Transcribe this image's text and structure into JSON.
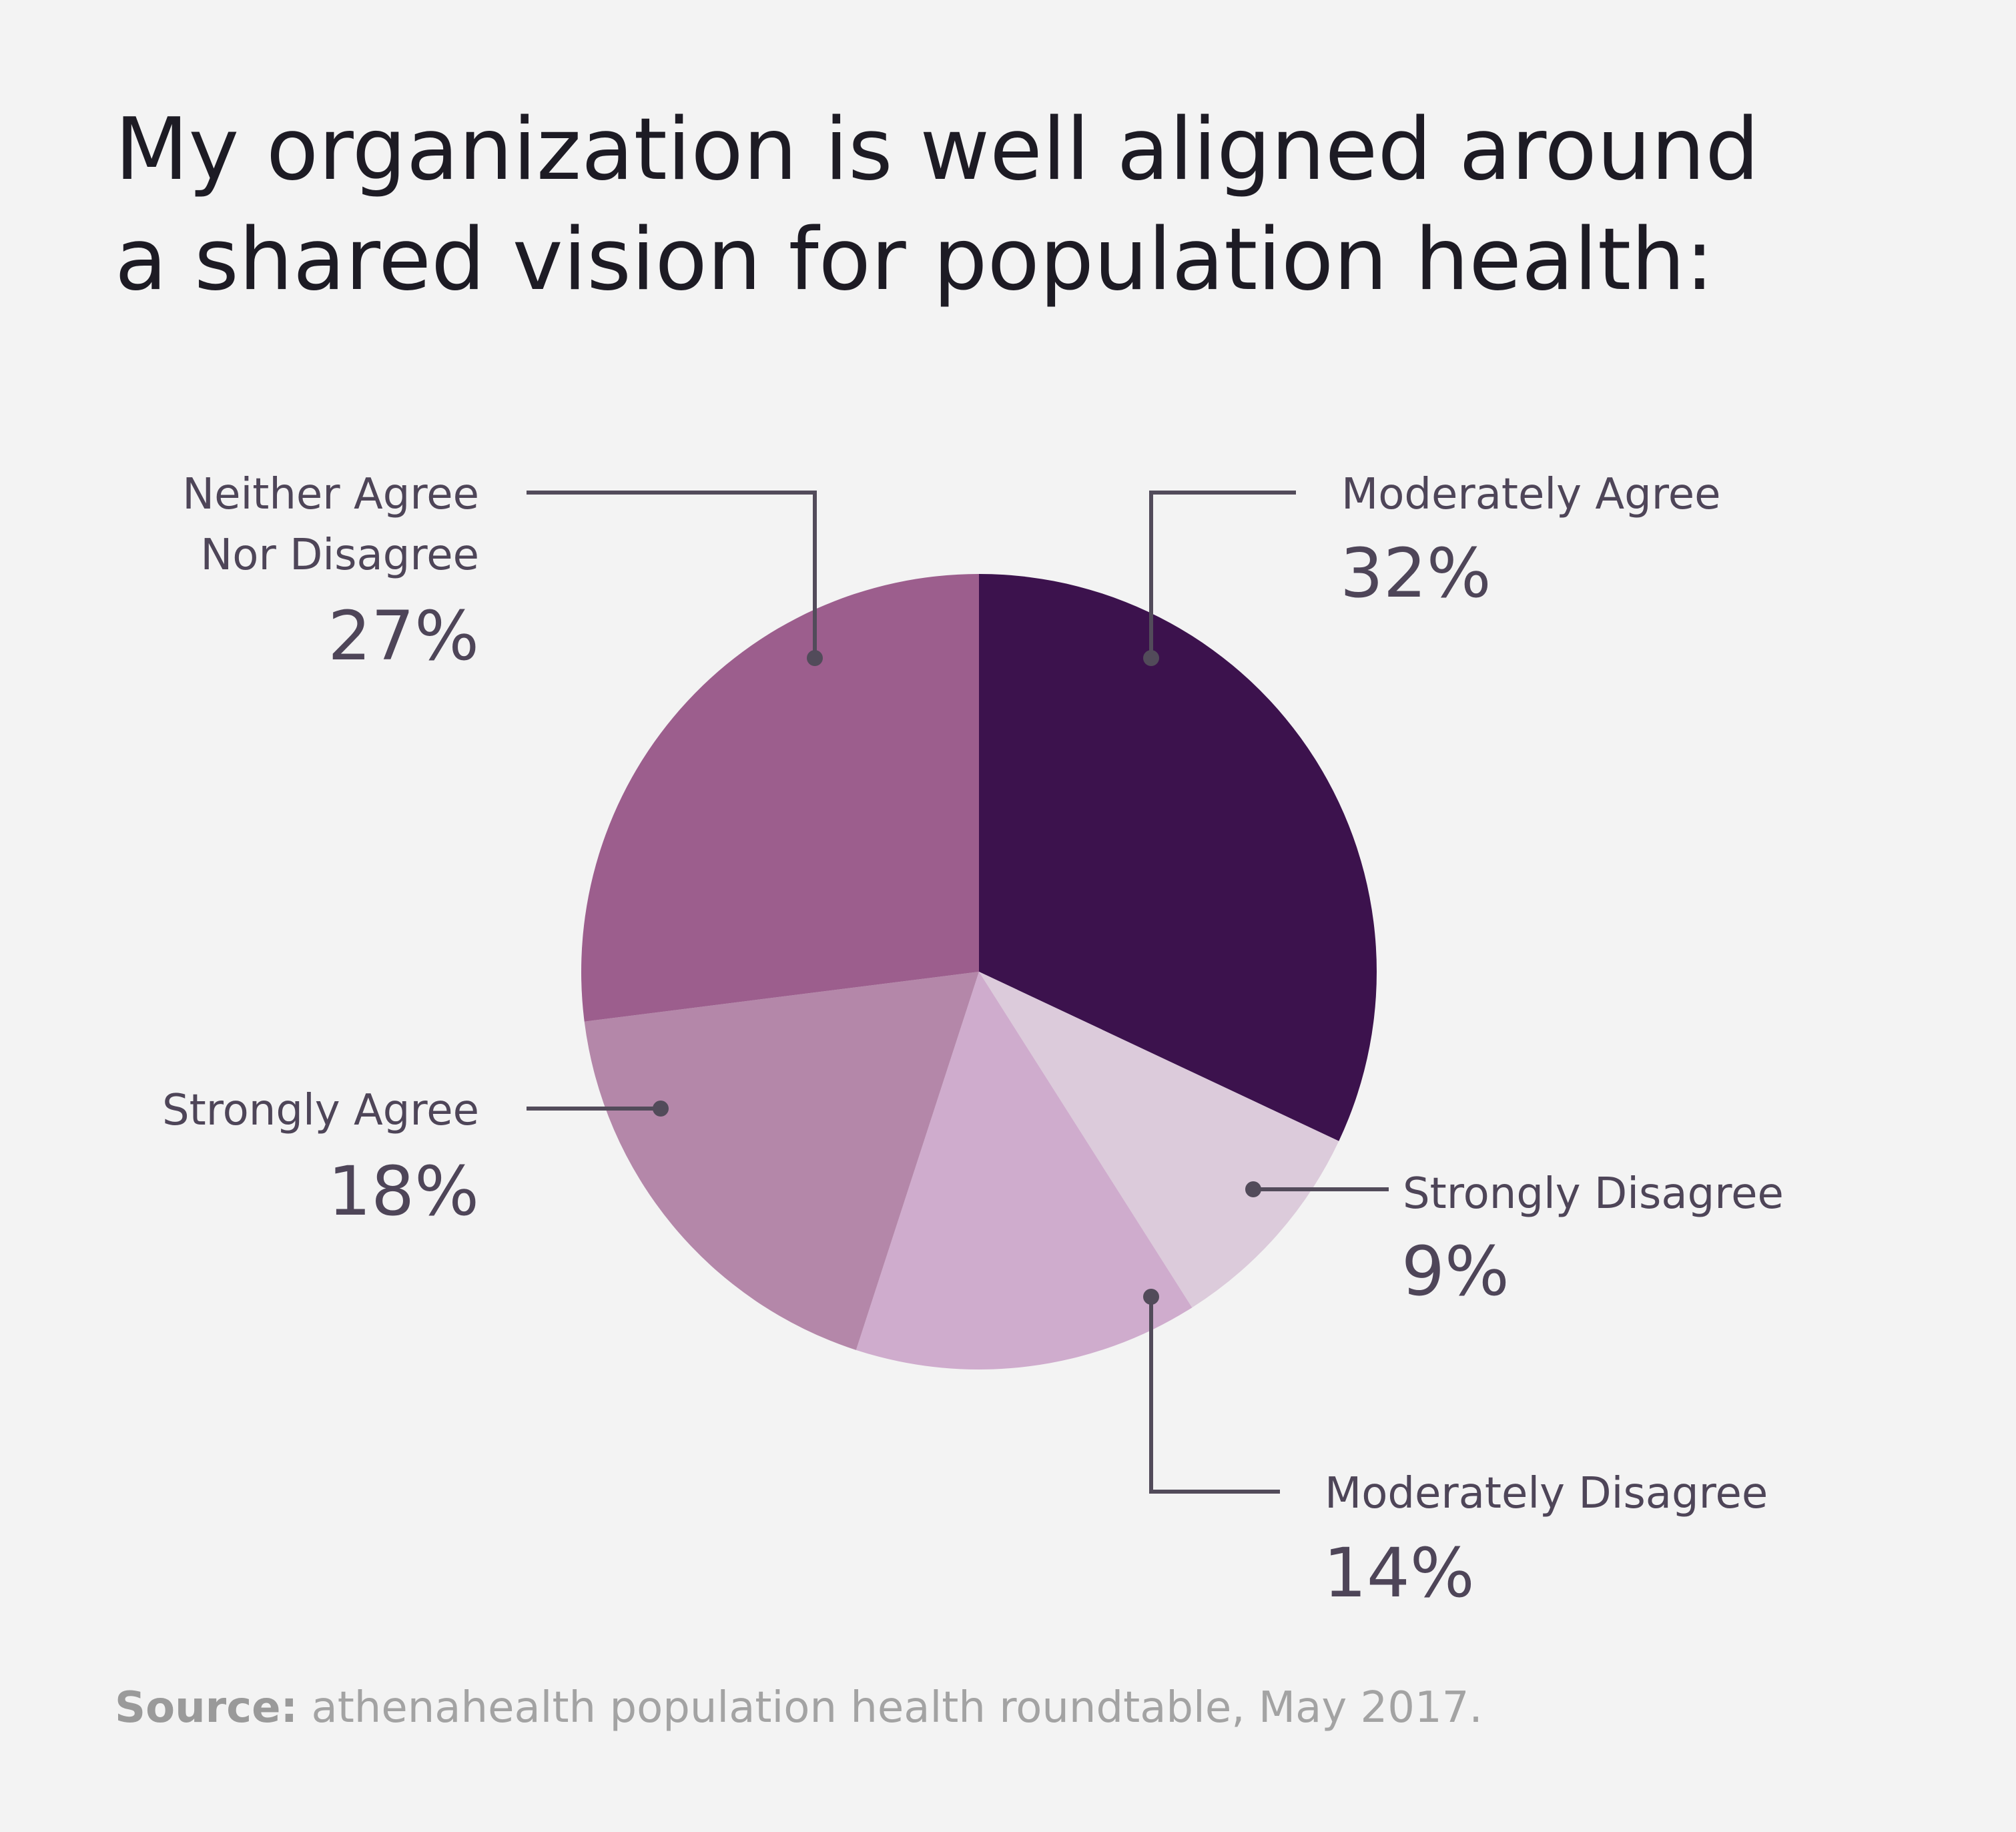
{
  "title": {
    "line1": "My organization is well aligned around",
    "line2": "a shared vision for population health:"
  },
  "source": {
    "label": "Source:",
    "text": " athenahealth population health roundtable, May 2017."
  },
  "chart_data": {
    "type": "pie",
    "title": "My organization is well aligned around a shared vision for population health:",
    "slices": [
      {
        "name": "Moderately Agree",
        "value": 32,
        "label": "32%",
        "color": "#3c124d"
      },
      {
        "name": "Strongly Disagree",
        "value": 9,
        "label": "9%",
        "color": "#dccbdb"
      },
      {
        "name": "Moderately Disagree",
        "value": 14,
        "label": "14%",
        "color": "#cfaccd"
      },
      {
        "name": "Strongly Agree",
        "value": 18,
        "label": "18%",
        "color": "#b487a9"
      },
      {
        "name": "Neither Agree Nor Disagree",
        "value": 27,
        "label": "27%",
        "color": "#9c5e8d"
      }
    ],
    "legend": "callout-labels"
  }
}
